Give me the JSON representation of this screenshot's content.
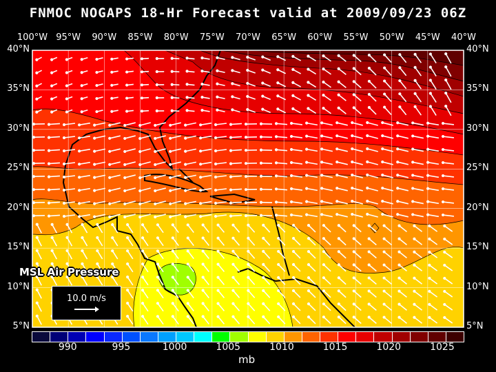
{
  "title": "FNMOC NOGAPS 18-Hr Forecast valid at 2009/09/23 06Z",
  "lon_labels": [
    "100°W",
    "95°W",
    "90°W",
    "85°W",
    "80°W",
    "75°W",
    "70°W",
    "65°W",
    "60°W",
    "55°W",
    "50°W",
    "45°W",
    "40°W"
  ],
  "lat_labels": [
    "40°N",
    "35°N",
    "30°N",
    "25°N",
    "20°N",
    "15°N",
    "10°N",
    "5°N"
  ],
  "legend": {
    "field_label": "MSL Air Pressure",
    "reference_vector": "10.0 m/s"
  },
  "colorbar": {
    "colors": [
      "#0a0a3c",
      "#000078",
      "#0000b4",
      "#0000ff",
      "#0a28ff",
      "#0050ff",
      "#0a78ff",
      "#00a0ff",
      "#00c8ff",
      "#00ffff",
      "#00ff00",
      "#a0ff00",
      "#ffff00",
      "#ffd200",
      "#ff9600",
      "#ff6400",
      "#ff3200",
      "#ff0000",
      "#e60000",
      "#c00000",
      "#a00000",
      "#800000",
      "#600000",
      "#3c0000"
    ],
    "ticks": [
      "990",
      "995",
      "1000",
      "1005",
      "1010",
      "1015",
      "1020",
      "1025"
    ],
    "tick_values": [
      990,
      995,
      1000,
      1005,
      1010,
      1015,
      1020,
      1025
    ],
    "range": [
      986.7,
      1027
    ],
    "units": "mb"
  }
}
